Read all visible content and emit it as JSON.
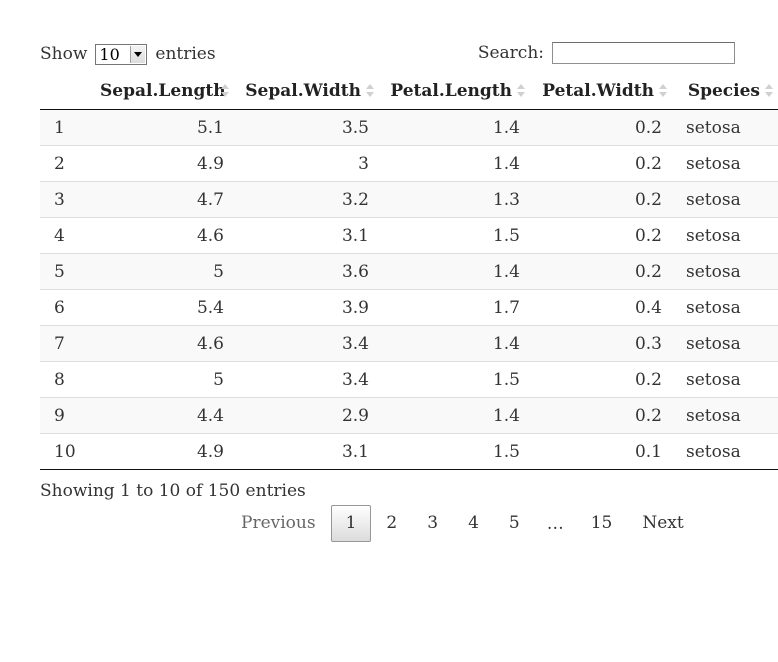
{
  "length": {
    "show_label": "Show",
    "selected": "10",
    "entries_label": "entries"
  },
  "search": {
    "label": "Search:",
    "value": ""
  },
  "table": {
    "columns": [
      "",
      "Sepal.Length",
      "Sepal.Width",
      "Petal.Length",
      "Petal.Width",
      "Species"
    ],
    "rows": [
      [
        "1",
        "5.1",
        "3.5",
        "1.4",
        "0.2",
        "setosa"
      ],
      [
        "2",
        "4.9",
        "3",
        "1.4",
        "0.2",
        "setosa"
      ],
      [
        "3",
        "4.7",
        "3.2",
        "1.3",
        "0.2",
        "setosa"
      ],
      [
        "4",
        "4.6",
        "3.1",
        "1.5",
        "0.2",
        "setosa"
      ],
      [
        "5",
        "5",
        "3.6",
        "1.4",
        "0.2",
        "setosa"
      ],
      [
        "6",
        "5.4",
        "3.9",
        "1.7",
        "0.4",
        "setosa"
      ],
      [
        "7",
        "4.6",
        "3.4",
        "1.4",
        "0.3",
        "setosa"
      ],
      [
        "8",
        "5",
        "3.4",
        "1.5",
        "0.2",
        "setosa"
      ],
      [
        "9",
        "4.4",
        "2.9",
        "1.4",
        "0.2",
        "setosa"
      ],
      [
        "10",
        "4.9",
        "3.1",
        "1.5",
        "0.1",
        "setosa"
      ]
    ]
  },
  "info": "Showing 1 to 10 of 150 entries",
  "pagination": {
    "previous": "Previous",
    "pages": [
      "1",
      "2",
      "3",
      "4",
      "5"
    ],
    "current": "1",
    "ellipsis": "…",
    "last": "15",
    "next": "Next"
  }
}
